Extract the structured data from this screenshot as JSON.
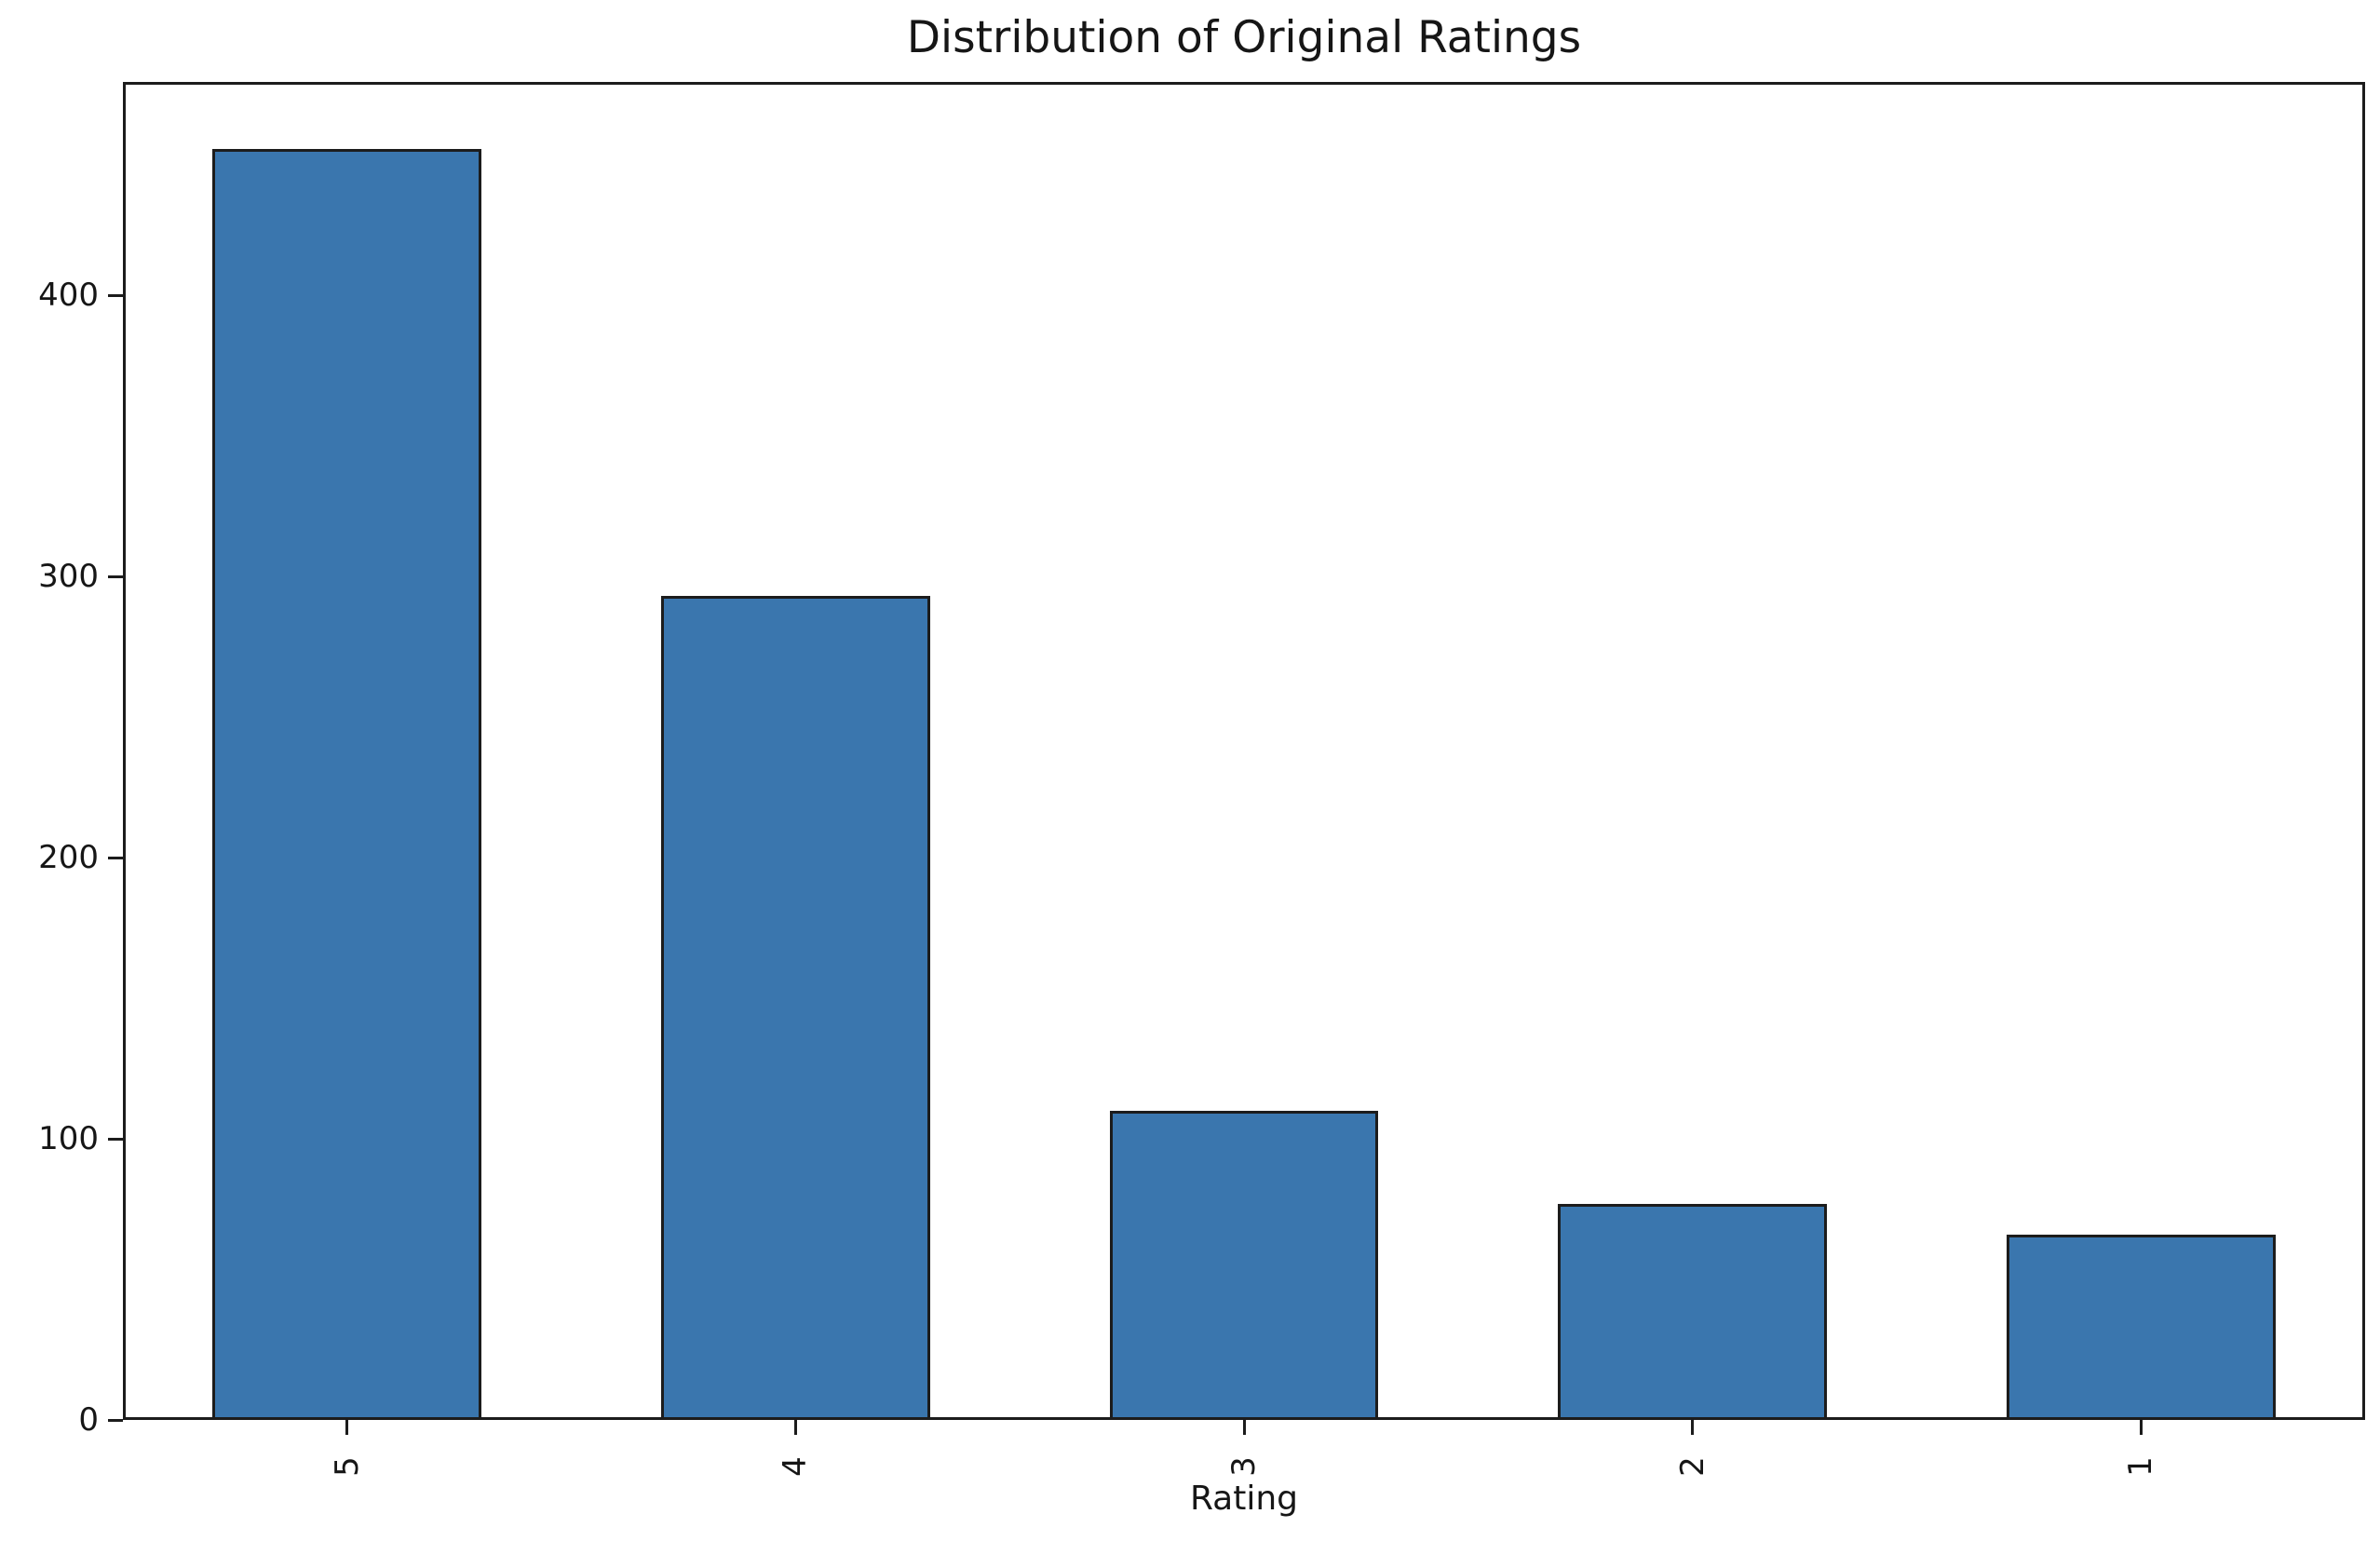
{
  "chart": {
    "title": "Distribution of Original Ratings",
    "xlabel": "Rating"
  },
  "chart_data": {
    "type": "bar",
    "title": "Distribution of Original Ratings",
    "xlabel": "Rating",
    "ylabel": "",
    "categories": [
      "5",
      "4",
      "3",
      "2",
      "1"
    ],
    "values": [
      452,
      293,
      110,
      77,
      66
    ],
    "yticks": [
      0,
      100,
      200,
      300,
      400
    ],
    "ytick_labels": [
      "0",
      "100",
      "200",
      "300",
      "400"
    ],
    "ylim": [
      0,
      476
    ],
    "xtick_rotation": 90,
    "grid": false,
    "legend": false,
    "bar_color": "#3a76ae",
    "bar_edge_color": "#1c1c1c",
    "text_color": "#161616",
    "background_color": "#ffffff"
  }
}
